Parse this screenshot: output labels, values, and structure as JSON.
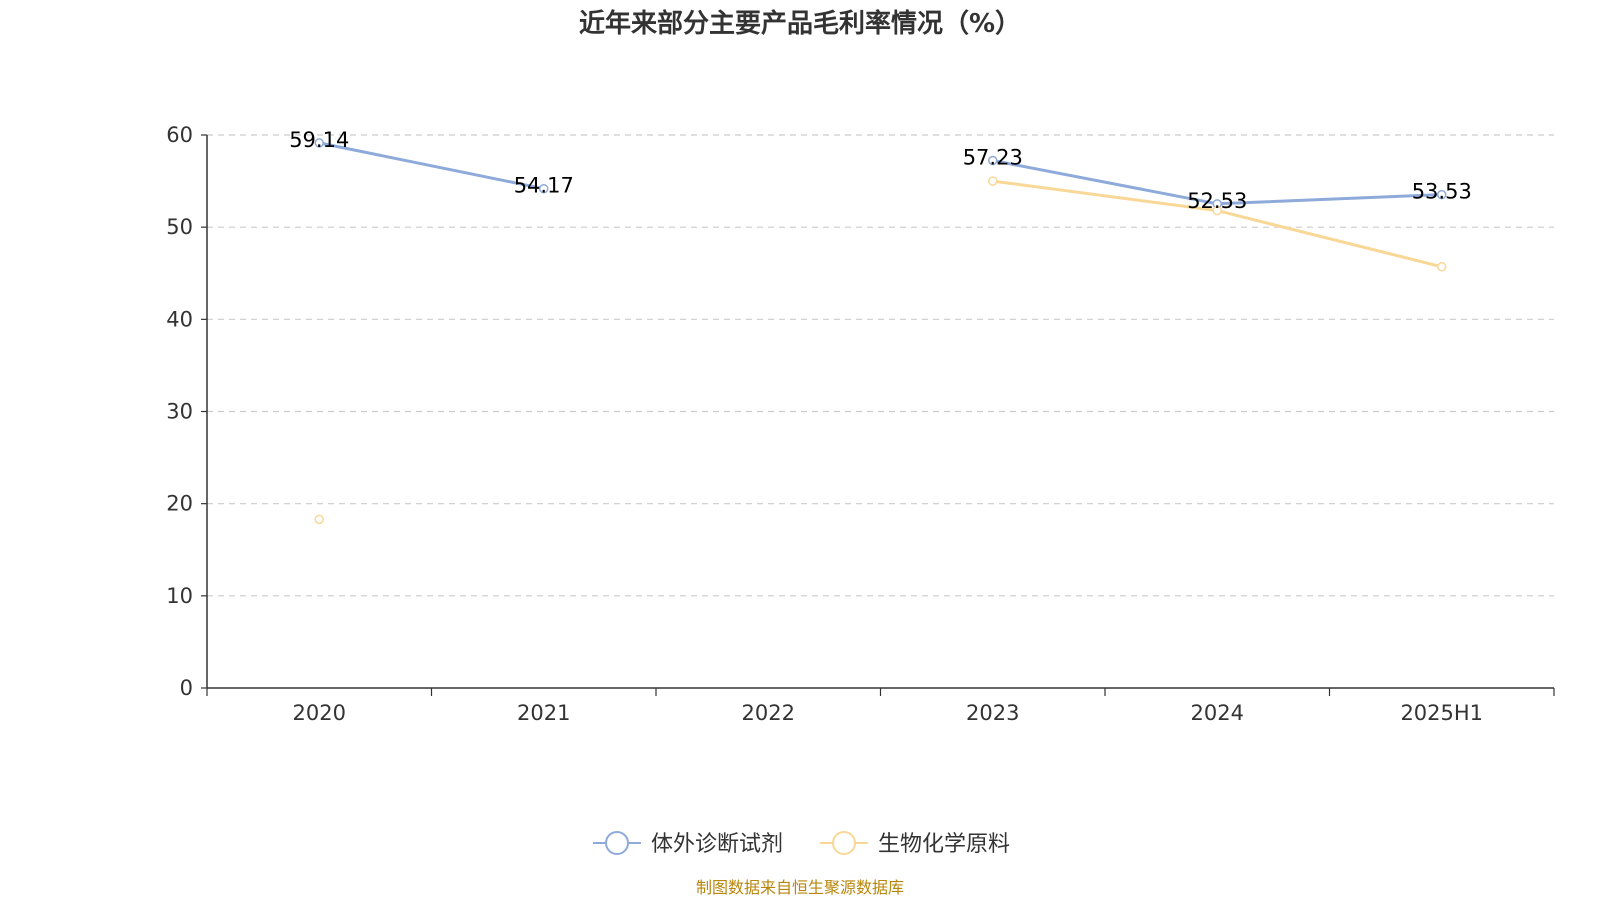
{
  "chart_data": {
    "type": "line",
    "title": "近年来部分主要产品毛利率情况（%）",
    "categories": [
      "2020",
      "2021",
      "2022",
      "2023",
      "2024",
      "2025H1"
    ],
    "xlabel": "",
    "ylabel": "",
    "ylim": [
      0,
      60
    ],
    "yticks": [
      "0",
      "10",
      "20",
      "30",
      "40",
      "50",
      "60"
    ],
    "grid": "horizontal dashed",
    "legend_position": "bottom-center",
    "series": [
      {
        "name": "体外诊断试剂",
        "color": "#8eaadb",
        "values": [
          59.14,
          54.17,
          null,
          57.23,
          52.53,
          53.53
        ],
        "labels": [
          "59.14",
          "54.17",
          "",
          "57.23",
          "52.53",
          "53.53"
        ]
      },
      {
        "name": "生物化学原料",
        "color": "#f9d796",
        "values": [
          18.3,
          null,
          null,
          55.0,
          51.8,
          45.7
        ],
        "labels": [
          "",
          "",
          "",
          "",
          "",
          ""
        ]
      }
    ],
    "source": "制图数据来自恒生聚源数据库"
  }
}
